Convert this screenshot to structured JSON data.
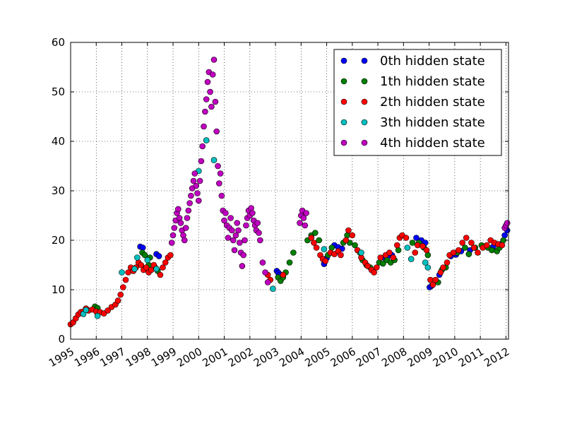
{
  "chart_data": {
    "type": "scatter",
    "title": "",
    "xlabel": "",
    "ylabel": "",
    "xlim": [
      1995,
      2012.1
    ],
    "ylim": [
      0,
      60
    ],
    "grid": true,
    "legend_position": "top-right",
    "x_ticks": [
      "1995",
      "1996",
      "1997",
      "1998",
      "1999",
      "2000",
      "2001",
      "2002",
      "2003",
      "2004",
      "2005",
      "2006",
      "2007",
      "2008",
      "2009",
      "2010",
      "2011",
      "2012"
    ],
    "y_ticks": [
      "0",
      "10",
      "20",
      "30",
      "40",
      "50",
      "60"
    ],
    "series": [
      {
        "name": "0th hidden state",
        "color": "#0000ff",
        "points": [
          [
            1997.72,
            18.7
          ],
          [
            1997.82,
            18.5
          ],
          [
            1998.35,
            17.2
          ],
          [
            1998.45,
            16.8
          ],
          [
            2003.05,
            13.8
          ],
          [
            2003.12,
            13.4
          ],
          [
            2003.2,
            13.0
          ],
          [
            2004.9,
            15.2
          ],
          [
            2005.0,
            16.4
          ],
          [
            2005.3,
            19.0
          ],
          [
            2005.45,
            18.6
          ],
          [
            2005.6,
            18.3
          ],
          [
            2007.25,
            16.5
          ],
          [
            2007.4,
            16.8
          ],
          [
            2007.55,
            17.0
          ],
          [
            2008.5,
            20.5
          ],
          [
            2008.7,
            20.0
          ],
          [
            2008.85,
            19.5
          ],
          [
            2009.02,
            10.5
          ],
          [
            2009.1,
            10.8
          ],
          [
            2009.4,
            13.0
          ],
          [
            2009.85,
            16.8
          ],
          [
            2010.05,
            17.1
          ],
          [
            2010.25,
            17.8
          ],
          [
            2010.6,
            18.0
          ],
          [
            2011.5,
            18.7
          ],
          [
            2011.8,
            19.2
          ],
          [
            2011.95,
            21.0
          ],
          [
            2012.05,
            22.0
          ]
        ]
      },
      {
        "name": "1th hidden state",
        "color": "#007f00",
        "points": [
          [
            1995.95,
            6.6
          ],
          [
            1996.05,
            6.3
          ],
          [
            1997.8,
            17.5
          ],
          [
            1997.9,
            17.0
          ],
          [
            1998.05,
            15.0
          ],
          [
            1998.1,
            16.5
          ],
          [
            1998.3,
            14.5
          ],
          [
            1998.4,
            13.8
          ],
          [
            2003.1,
            12.5
          ],
          [
            2003.2,
            11.8
          ],
          [
            2003.3,
            12.5
          ],
          [
            2003.4,
            13.5
          ],
          [
            2003.55,
            15.5
          ],
          [
            2003.7,
            17.5
          ],
          [
            2004.25,
            20.0
          ],
          [
            2004.4,
            21.0
          ],
          [
            2004.55,
            21.5
          ],
          [
            2004.7,
            20.0
          ],
          [
            2005.05,
            17.0
          ],
          [
            2005.2,
            18.5
          ],
          [
            2005.65,
            19.5
          ],
          [
            2005.8,
            21.0
          ],
          [
            2005.9,
            19.5
          ],
          [
            2006.1,
            19.0
          ],
          [
            2006.3,
            17.5
          ],
          [
            2006.4,
            16.0
          ],
          [
            2006.55,
            15.0
          ],
          [
            2006.7,
            14.5
          ],
          [
            2007.05,
            15.5
          ],
          [
            2007.2,
            15.3
          ],
          [
            2007.35,
            16.0
          ],
          [
            2007.5,
            15.5
          ],
          [
            2007.65,
            16.0
          ],
          [
            2007.8,
            18.0
          ],
          [
            2008.35,
            19.5
          ],
          [
            2008.6,
            19.5
          ],
          [
            2008.8,
            18.5
          ],
          [
            2008.95,
            17.0
          ],
          [
            2009.35,
            11.5
          ],
          [
            2009.5,
            14.0
          ],
          [
            2009.65,
            14.5
          ],
          [
            2010.1,
            17.5
          ],
          [
            2010.4,
            18.5
          ],
          [
            2010.55,
            17.2
          ],
          [
            2010.8,
            18.5
          ],
          [
            2011.05,
            19.0
          ],
          [
            2011.3,
            18.5
          ],
          [
            2011.45,
            18.0
          ],
          [
            2011.65,
            17.8
          ],
          [
            2011.75,
            18.5
          ],
          [
            2011.9,
            20.0
          ]
        ]
      },
      {
        "name": "2th hidden state",
        "color": "#ff0000",
        "points": [
          [
            1995.0,
            3.0
          ],
          [
            1995.1,
            3.4
          ],
          [
            1995.2,
            4.2
          ],
          [
            1995.3,
            5.0
          ],
          [
            1995.4,
            5.5
          ],
          [
            1995.5,
            5.6
          ],
          [
            1995.6,
            6.2
          ],
          [
            1995.7,
            5.8
          ],
          [
            1995.85,
            6.0
          ],
          [
            1996.0,
            5.6
          ],
          [
            1996.15,
            5.5
          ],
          [
            1996.3,
            5.2
          ],
          [
            1996.45,
            5.8
          ],
          [
            1996.6,
            6.5
          ],
          [
            1996.75,
            7.0
          ],
          [
            1996.85,
            7.8
          ],
          [
            1996.95,
            9.0
          ],
          [
            1997.05,
            10.5
          ],
          [
            1997.15,
            12.0
          ],
          [
            1997.25,
            13.5
          ],
          [
            1997.35,
            14.5
          ],
          [
            1997.45,
            13.8
          ],
          [
            1997.55,
            14.5
          ],
          [
            1997.65,
            15.5
          ],
          [
            1997.75,
            15.0
          ],
          [
            1997.85,
            14.0
          ],
          [
            1997.95,
            14.5
          ],
          [
            1998.05,
            13.5
          ],
          [
            1998.15,
            14.0
          ],
          [
            1998.25,
            15.0
          ],
          [
            1998.35,
            14.2
          ],
          [
            1998.5,
            13.0
          ],
          [
            1998.6,
            14.5
          ],
          [
            1998.7,
            15.5
          ],
          [
            1998.8,
            16.5
          ],
          [
            1998.9,
            17.0
          ],
          [
            2002.7,
            13.0
          ],
          [
            2002.8,
            12.0
          ],
          [
            2003.3,
            13.0
          ],
          [
            2004.4,
            20.5
          ],
          [
            2004.5,
            19.5
          ],
          [
            2004.6,
            18.5
          ],
          [
            2004.75,
            17.0
          ],
          [
            2004.85,
            16.2
          ],
          [
            2004.95,
            15.8
          ],
          [
            2005.15,
            17.5
          ],
          [
            2005.3,
            17.2
          ],
          [
            2005.45,
            17.8
          ],
          [
            2005.55,
            17.0
          ],
          [
            2005.75,
            20.0
          ],
          [
            2005.85,
            22.0
          ],
          [
            2006.0,
            21.0
          ],
          [
            2006.2,
            18.0
          ],
          [
            2006.35,
            16.5
          ],
          [
            2006.5,
            15.5
          ],
          [
            2006.6,
            14.8
          ],
          [
            2006.75,
            14.0
          ],
          [
            2006.85,
            13.5
          ],
          [
            2006.95,
            14.5
          ],
          [
            2007.1,
            16.5
          ],
          [
            2007.3,
            17.0
          ],
          [
            2007.45,
            17.5
          ],
          [
            2007.6,
            16.5
          ],
          [
            2007.75,
            19.0
          ],
          [
            2007.85,
            20.5
          ],
          [
            2007.95,
            21.0
          ],
          [
            2008.1,
            20.5
          ],
          [
            2008.45,
            17.5
          ],
          [
            2008.55,
            19.0
          ],
          [
            2008.75,
            18.8
          ],
          [
            2008.9,
            18.0
          ],
          [
            2009.05,
            12.0
          ],
          [
            2009.15,
            11.0
          ],
          [
            2009.25,
            12.0
          ],
          [
            2009.45,
            13.5
          ],
          [
            2009.55,
            14.5
          ],
          [
            2009.7,
            15.5
          ],
          [
            2009.8,
            17.0
          ],
          [
            2009.95,
            17.5
          ],
          [
            2010.15,
            18.0
          ],
          [
            2010.3,
            19.5
          ],
          [
            2010.45,
            20.5
          ],
          [
            2010.65,
            19.5
          ],
          [
            2010.75,
            18.5
          ],
          [
            2010.9,
            17.5
          ],
          [
            2011.1,
            18.5
          ],
          [
            2011.25,
            19.0
          ],
          [
            2011.4,
            20.0
          ],
          [
            2011.55,
            19.5
          ],
          [
            2011.7,
            19.2
          ],
          [
            2011.85,
            19.0
          ]
        ]
      },
      {
        "name": "3th hidden state",
        "color": "#00bfbf",
        "points": [
          [
            1995.5,
            5.1
          ],
          [
            1995.6,
            5.9
          ],
          [
            1996.05,
            4.7
          ],
          [
            1997.0,
            13.5
          ],
          [
            1997.5,
            14.2
          ],
          [
            1997.6,
            16.5
          ],
          [
            1998.0,
            16.0
          ],
          [
            1998.35,
            14.2
          ],
          [
            2000.0,
            34.0
          ],
          [
            2000.3,
            40.2
          ],
          [
            2000.6,
            36.2
          ],
          [
            2002.9,
            10.2
          ],
          [
            2004.9,
            18.2
          ],
          [
            2006.35,
            17.5
          ],
          [
            2008.15,
            18.5
          ],
          [
            2008.3,
            16.2
          ],
          [
            2008.85,
            15.5
          ],
          [
            2008.95,
            14.5
          ]
        ]
      },
      {
        "name": "4th hidden state",
        "color": "#bf00bf",
        "points": [
          [
            1998.95,
            19.5
          ],
          [
            1999.0,
            21.0
          ],
          [
            1999.05,
            22.5
          ],
          [
            1999.1,
            24.0
          ],
          [
            1999.15,
            25.5
          ],
          [
            1999.2,
            26.3
          ],
          [
            1999.25,
            24.5
          ],
          [
            1999.3,
            23.5
          ],
          [
            1999.35,
            22.0
          ],
          [
            1999.4,
            21.0
          ],
          [
            1999.45,
            20.0
          ],
          [
            1999.5,
            22.5
          ],
          [
            1999.55,
            24.5
          ],
          [
            1999.6,
            26.0
          ],
          [
            1999.65,
            27.5
          ],
          [
            1999.7,
            29.0
          ],
          [
            1999.75,
            30.5
          ],
          [
            1999.8,
            32.0
          ],
          [
            1999.85,
            33.5
          ],
          [
            1999.9,
            31.0
          ],
          [
            1999.95,
            29.5
          ],
          [
            2000.0,
            28.0
          ],
          [
            2000.05,
            32.0
          ],
          [
            2000.1,
            36.0
          ],
          [
            2000.15,
            39.0
          ],
          [
            2000.2,
            43.0
          ],
          [
            2000.25,
            46.0
          ],
          [
            2000.3,
            48.5
          ],
          [
            2000.35,
            52.0
          ],
          [
            2000.4,
            54.0
          ],
          [
            2000.45,
            50.0
          ],
          [
            2000.5,
            47.0
          ],
          [
            2000.55,
            53.5
          ],
          [
            2000.6,
            56.5
          ],
          [
            2000.65,
            48.0
          ],
          [
            2000.7,
            42.0
          ],
          [
            2000.75,
            35.0
          ],
          [
            2000.8,
            31.5
          ],
          [
            2000.85,
            33.5
          ],
          [
            2000.9,
            29.0
          ],
          [
            2000.95,
            26.0
          ],
          [
            2001.0,
            24.0
          ],
          [
            2001.05,
            25.5
          ],
          [
            2001.1,
            23.0
          ],
          [
            2001.15,
            20.5
          ],
          [
            2001.2,
            22.5
          ],
          [
            2001.25,
            24.5
          ],
          [
            2001.3,
            22.0
          ],
          [
            2001.35,
            20.0
          ],
          [
            2001.4,
            18.0
          ],
          [
            2001.45,
            21.0
          ],
          [
            2001.5,
            23.5
          ],
          [
            2001.55,
            22.0
          ],
          [
            2001.6,
            19.5
          ],
          [
            2001.65,
            17.5
          ],
          [
            2001.7,
            14.8
          ],
          [
            2001.75,
            17.0
          ],
          [
            2001.8,
            20.0
          ],
          [
            2001.85,
            23.0
          ],
          [
            2001.9,
            24.5
          ],
          [
            2001.95,
            26.0
          ],
          [
            2002.0,
            25.0
          ],
          [
            2002.05,
            26.5
          ],
          [
            2002.1,
            25.5
          ],
          [
            2002.15,
            24.0
          ],
          [
            2002.2,
            23.0
          ],
          [
            2002.25,
            22.0
          ],
          [
            2002.3,
            23.5
          ],
          [
            2002.35,
            21.5
          ],
          [
            2002.4,
            20.0
          ],
          [
            2002.5,
            15.5
          ],
          [
            2002.6,
            13.5
          ],
          [
            2002.7,
            11.5
          ],
          [
            2003.95,
            23.5
          ],
          [
            2004.0,
            25.0
          ],
          [
            2004.05,
            26.0
          ],
          [
            2004.1,
            24.5
          ],
          [
            2004.15,
            23.0
          ],
          [
            2004.2,
            25.5
          ],
          [
            2011.95,
            22.5
          ],
          [
            2012.0,
            23.0
          ],
          [
            2012.05,
            23.5
          ]
        ]
      }
    ]
  }
}
